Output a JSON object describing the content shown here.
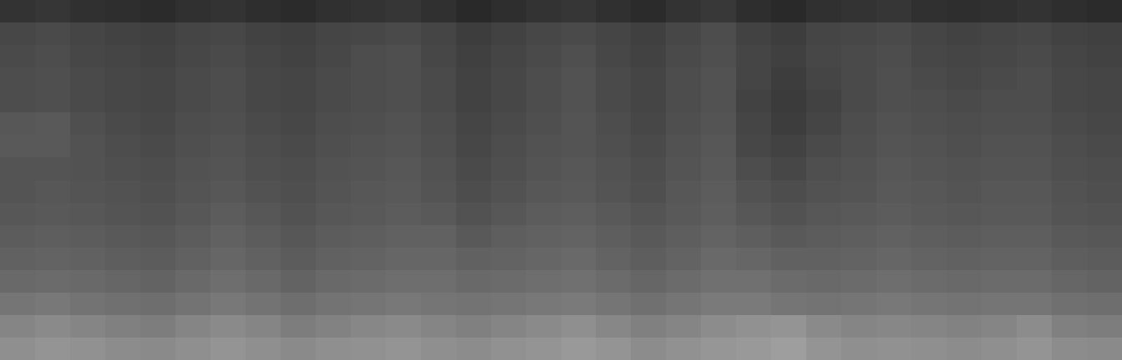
{
  "chart_data": {
    "type": "heatmap",
    "tick_labels": false,
    "grid": false,
    "zlim": [
      0,
      100
    ],
    "z": [
      [
        20,
        21,
        19,
        18,
        17,
        19,
        20,
        18,
        17,
        19,
        20,
        21,
        19,
        16,
        18,
        20,
        21,
        19,
        17,
        20,
        22,
        18,
        16,
        19,
        20,
        21,
        19,
        18,
        19,
        20,
        18,
        17
      ],
      [
        28,
        29,
        27,
        26,
        25,
        27,
        28,
        26,
        25,
        27,
        28,
        29,
        27,
        24,
        26,
        28,
        29,
        27,
        25,
        28,
        30,
        26,
        24,
        27,
        28,
        29,
        27,
        26,
        27,
        28,
        26,
        25
      ],
      [
        29,
        30,
        28,
        27,
        26,
        28,
        29,
        27,
        26,
        28,
        30,
        31,
        28,
        25,
        27,
        29,
        31,
        28,
        26,
        29,
        31,
        27,
        25,
        28,
        29,
        30,
        28,
        27,
        28,
        29,
        27,
        26
      ],
      [
        30,
        31,
        29,
        28,
        27,
        29,
        30,
        28,
        27,
        29,
        30,
        31,
        29,
        26,
        28,
        30,
        32,
        29,
        27,
        30,
        32,
        27,
        24,
        27,
        29,
        31,
        29,
        28,
        29,
        30,
        28,
        27
      ],
      [
        30,
        31,
        29,
        28,
        27,
        29,
        30,
        28,
        27,
        29,
        30,
        31,
        29,
        26,
        28,
        30,
        32,
        29,
        27,
        30,
        32,
        26,
        23,
        26,
        29,
        31,
        30,
        29,
        30,
        30,
        28,
        27
      ],
      [
        34,
        35,
        31,
        29,
        28,
        30,
        31,
        29,
        28,
        30,
        31,
        32,
        30,
        27,
        29,
        31,
        33,
        30,
        28,
        31,
        33,
        27,
        24,
        27,
        30,
        32,
        31,
        30,
        31,
        31,
        29,
        28
      ],
      [
        35,
        35,
        32,
        30,
        29,
        31,
        32,
        30,
        29,
        31,
        32,
        33,
        31,
        28,
        30,
        32,
        33,
        31,
        29,
        32,
        34,
        28,
        26,
        29,
        31,
        33,
        32,
        31,
        32,
        32,
        30,
        29
      ],
      [
        33,
        33,
        32,
        31,
        30,
        32,
        33,
        31,
        30,
        32,
        33,
        34,
        32,
        29,
        31,
        33,
        34,
        32,
        30,
        33,
        35,
        30,
        28,
        31,
        32,
        34,
        33,
        32,
        33,
        33,
        31,
        30
      ],
      [
        33,
        34,
        33,
        32,
        31,
        33,
        34,
        32,
        31,
        33,
        34,
        35,
        33,
        30,
        32,
        34,
        35,
        33,
        31,
        34,
        36,
        32,
        30,
        32,
        33,
        35,
        34,
        33,
        34,
        34,
        32,
        31
      ],
      [
        34,
        35,
        34,
        33,
        32,
        34,
        36,
        34,
        32,
        34,
        35,
        36,
        35,
        32,
        34,
        36,
        37,
        35,
        33,
        35,
        37,
        34,
        32,
        34,
        35,
        36,
        35,
        34,
        35,
        35,
        33,
        32
      ],
      [
        36,
        37,
        36,
        35,
        34,
        36,
        38,
        36,
        34,
        36,
        37,
        38,
        38,
        35,
        37,
        38,
        39,
        37,
        35,
        37,
        39,
        37,
        35,
        36,
        37,
        38,
        37,
        36,
        37,
        37,
        35,
        34
      ],
      [
        38,
        39,
        38,
        37,
        36,
        38,
        40,
        38,
        36,
        38,
        39,
        40,
        40,
        38,
        39,
        40,
        41,
        39,
        37,
        39,
        41,
        40,
        38,
        38,
        39,
        40,
        39,
        38,
        39,
        39,
        37,
        36
      ],
      [
        41,
        42,
        41,
        40,
        39,
        41,
        43,
        41,
        39,
        41,
        42,
        43,
        43,
        41,
        42,
        43,
        44,
        42,
        40,
        42,
        44,
        44,
        42,
        41,
        42,
        43,
        42,
        41,
        42,
        42,
        40,
        39
      ],
      [
        46,
        47,
        45,
        44,
        43,
        45,
        47,
        45,
        43,
        45,
        46,
        47,
        46,
        45,
        46,
        47,
        48,
        46,
        44,
        46,
        48,
        48,
        46,
        45,
        46,
        47,
        46,
        45,
        46,
        46,
        44,
        43
      ],
      [
        52,
        54,
        52,
        50,
        49,
        52,
        54,
        52,
        49,
        51,
        53,
        54,
        52,
        50,
        52,
        54,
        56,
        53,
        50,
        52,
        55,
        57,
        58,
        54,
        52,
        53,
        52,
        51,
        52,
        55,
        50,
        49
      ],
      [
        56,
        58,
        57,
        55,
        54,
        56,
        58,
        56,
        54,
        56,
        57,
        58,
        56,
        55,
        57,
        58,
        60,
        58,
        55,
        57,
        59,
        60,
        62,
        58,
        56,
        57,
        56,
        55,
        56,
        58,
        55,
        54
      ]
    ]
  }
}
